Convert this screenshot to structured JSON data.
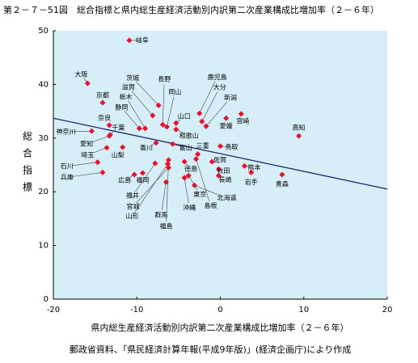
{
  "chart_data": {
    "type": "scatter",
    "title": "第２－７－51図　総合指標と県内総生産経済活動別内訳第二次産業構成比増加率（２－６年）",
    "x_label": "県内総生産経済活動別内訳第二次産業構成比増加率（２－６年）",
    "y_label": "総合指標",
    "source": "郵政省資料、「県民経済計算年報(平成9年版)」(経済企画庁)により作成",
    "xlim": [
      -20,
      20
    ],
    "xticks": [
      -20,
      -10,
      0,
      10,
      20
    ],
    "ylim": [
      0,
      50
    ],
    "yticks": [
      0,
      10,
      20,
      30,
      40,
      50
    ],
    "grid": false,
    "color": "#e8102e",
    "trendline": {
      "color": "#1a2a6b",
      "x": [
        -20,
        20
      ],
      "y": [
        33.7,
        20.5
      ]
    },
    "labels": [
      "岐阜",
      "大阪",
      "京都",
      "奈良",
      "神奈川",
      "千葉",
      "愛知",
      "埼玉",
      "山梨",
      "石川",
      "兵庫",
      "茨城",
      "滋賀",
      "栃木",
      "静岡",
      "長野",
      "岡山",
      "鹿児島",
      "大分",
      "新潟",
      "宮崎",
      "愛媛",
      "山口",
      "和歌山",
      "富山",
      "香川",
      "高知",
      "鳥取",
      "三重",
      "佐賀",
      "秋田",
      "長崎",
      "熊本",
      "岩手",
      "青森",
      "徳島",
      "北海道",
      "東京",
      "島根",
      "沖縄",
      "広島",
      "福岡",
      "群馬",
      "福島",
      "山形",
      "宮城",
      "福井"
    ],
    "x": [
      -10.9,
      -15.9,
      -14.1,
      -13.3,
      -15.4,
      -13.2,
      -13.3,
      -13.6,
      -11.7,
      -14.7,
      -14.1,
      -7.4,
      -8.1,
      -9.0,
      -9.7,
      -6.9,
      -6.4,
      -2.5,
      -2.2,
      -1.7,
      2.5,
      0.7,
      -5.3,
      -5.3,
      -5.7,
      -7.7,
      9.4,
      0.0,
      -2.7,
      -1.0,
      -0.2,
      -0.2,
      2.9,
      3.7,
      7.4,
      -4.3,
      -3.1,
      -3.8,
      -2.9,
      -4.3,
      -10.3,
      -9.3,
      -6.5,
      -6.2,
      -6.3,
      -6.2,
      -7.8
    ],
    "y": [
      48.2,
      40.2,
      36.6,
      32.4,
      31.3,
      30.6,
      30.4,
      28.2,
      28.3,
      25.5,
      23.6,
      36.1,
      34.2,
      31.8,
      31.8,
      32.5,
      32.1,
      34.6,
      33.1,
      32.2,
      34.5,
      33.7,
      32.8,
      31.6,
      28.9,
      29.1,
      30.4,
      28.5,
      27.0,
      25.6,
      24.2,
      23.0,
      24.8,
      23.6,
      23.2,
      25.6,
      21.2,
      23.0,
      26.1,
      22.6,
      23.2,
      23.5,
      21.8,
      25.9,
      25.2,
      24.5,
      25.3
    ]
  }
}
